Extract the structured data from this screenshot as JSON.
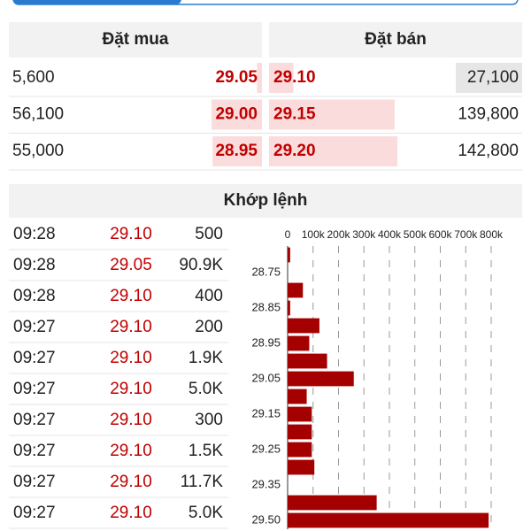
{
  "order_book": {
    "buy_header": "Đặt mua",
    "sell_header": "Đặt bán",
    "rows": [
      {
        "buy_volume": {
          "value": 5600,
          "label": "5,600"
        },
        "buy_price": "29.05",
        "sell_price": "29.10",
        "sell_volume": {
          "value": 27100,
          "label": "27,100"
        }
      },
      {
        "buy_volume": {
          "value": 56100,
          "label": "56,100"
        },
        "buy_price": "29.00",
        "sell_price": "29.15",
        "sell_volume": {
          "value": 139800,
          "label": "139,800"
        }
      },
      {
        "buy_volume": {
          "value": 55000,
          "label": "55,000"
        },
        "buy_price": "28.95",
        "sell_price": "29.20",
        "sell_volume": {
          "value": 142800,
          "label": "142,800"
        }
      }
    ]
  },
  "trades": {
    "title": "Khớp lệnh",
    "rows": [
      [
        "09:28",
        "29.10",
        "500"
      ],
      [
        "09:28",
        "29.05",
        "90.9K"
      ],
      [
        "09:28",
        "29.10",
        "400"
      ],
      [
        "09:27",
        "29.10",
        "200"
      ],
      [
        "09:27",
        "29.10",
        "1.9K"
      ],
      [
        "09:27",
        "29.10",
        "5.0K"
      ],
      [
        "09:27",
        "29.10",
        "300"
      ],
      [
        "09:27",
        "29.10",
        "1.5K"
      ],
      [
        "09:27",
        "29.10",
        "11.7K"
      ],
      [
        "09:27",
        "29.10",
        "5.0K"
      ]
    ]
  },
  "chart_data": {
    "type": "bar",
    "orientation": "horizontal",
    "categories": [
      null,
      "28.75",
      null,
      "28.85",
      null,
      "28.95",
      null,
      "29.05",
      null,
      "29.15",
      null,
      "29.25",
      null,
      "29.35",
      null,
      "29.50"
    ],
    "values": [
      10000,
      0,
      60000,
      10000,
      125000,
      85000,
      155000,
      260000,
      75000,
      95000,
      95000,
      95000,
      105000,
      0,
      350000,
      790000
    ],
    "color": "#a50000",
    "xlim": [
      0,
      800000
    ],
    "xticks": [
      0,
      {
        "value": 100000,
        "label": "100k"
      },
      {
        "value": 200000,
        "label": "200k"
      },
      {
        "value": 300000,
        "label": "300k"
      },
      {
        "value": 400000,
        "label": "400k"
      },
      {
        "value": 500000,
        "label": "500k"
      },
      {
        "value": 600000,
        "label": "600k"
      },
      {
        "value": 700000,
        "label": "700k"
      },
      {
        "value": 800000,
        "label": "800k"
      }
    ],
    "grid": true
  }
}
